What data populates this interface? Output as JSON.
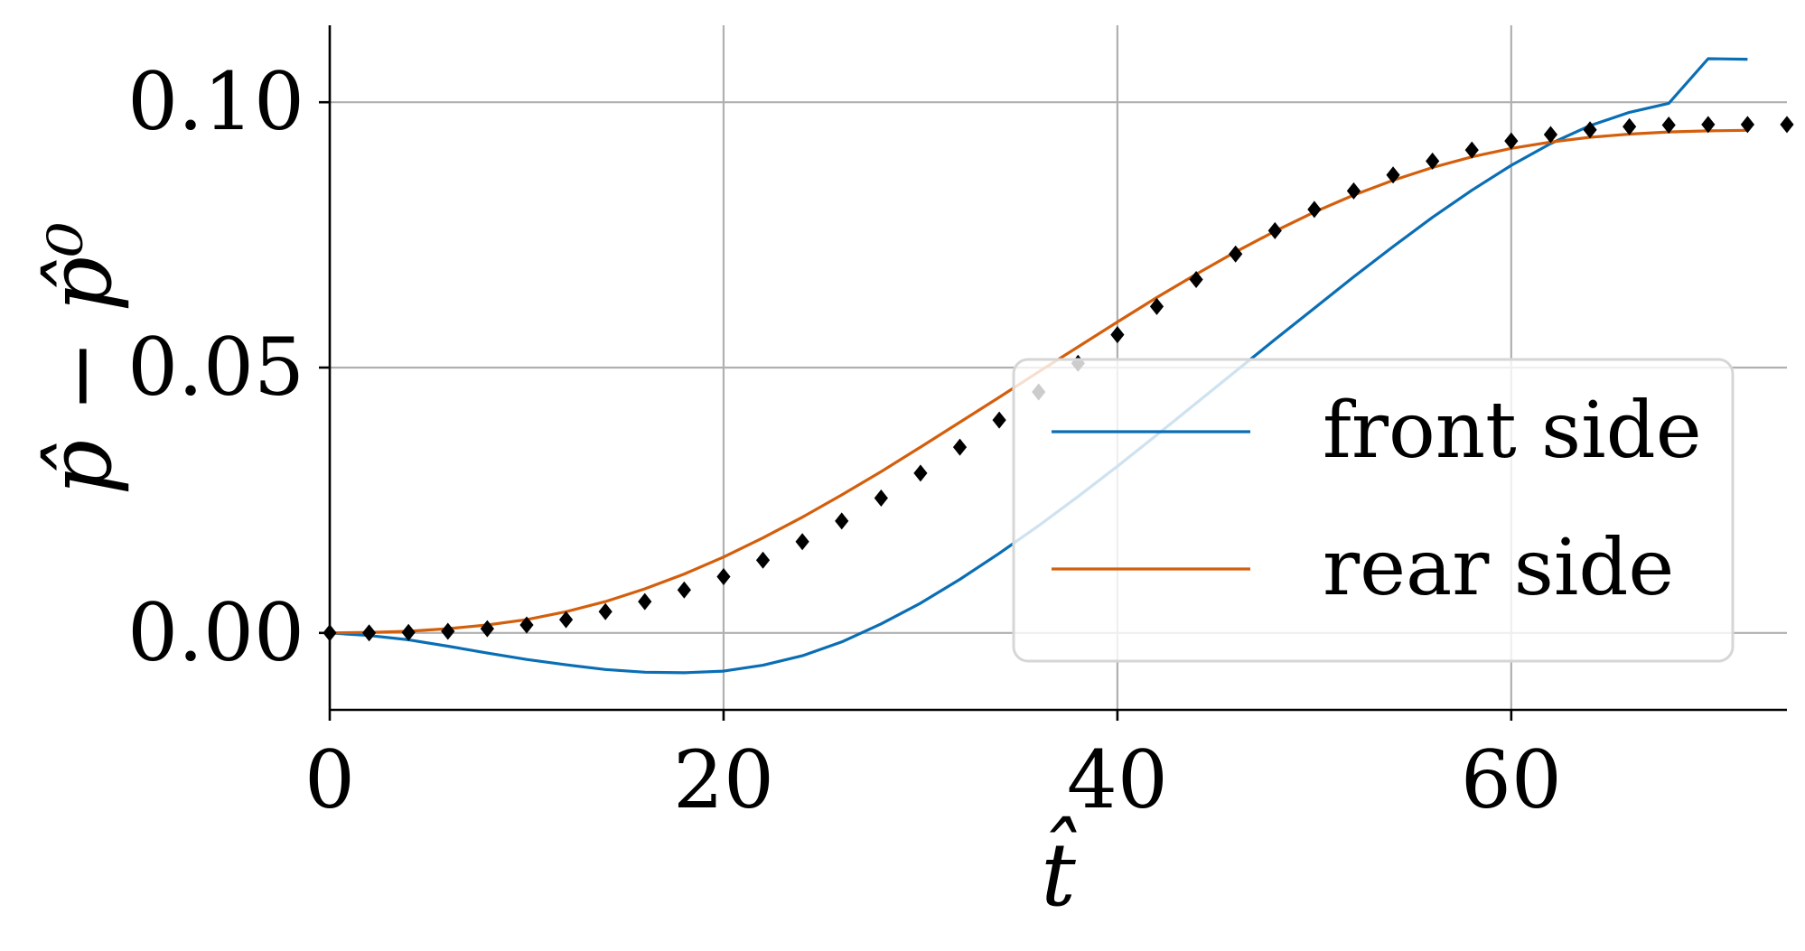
{
  "chart_data": {
    "type": "line",
    "xlabel": "t̂",
    "ylabel": "p̂ − p̂⁰",
    "xlim": [
      0,
      74
    ],
    "ylim": [
      -0.0145,
      0.1145
    ],
    "x_ticks": [
      0,
      20,
      40,
      60
    ],
    "x_tick_labels": [
      "0",
      "20",
      "40",
      "60"
    ],
    "y_ticks": [
      0.0,
      0.05,
      0.1
    ],
    "y_tick_labels": [
      "0.00",
      "0.05",
      "0.10"
    ],
    "grid": true,
    "legend_position": "lower-right",
    "series": [
      {
        "name": "front side",
        "style": "line",
        "color": "#0a6eb4",
        "x": [
          0,
          2,
          4,
          6,
          8,
          10,
          12,
          14,
          16,
          18,
          20,
          22,
          24,
          26,
          28,
          30,
          32,
          34,
          36,
          38,
          40,
          42,
          44,
          46,
          48,
          50,
          52,
          54,
          56,
          58,
          60,
          62,
          64,
          66,
          68,
          70,
          72
        ],
        "y": [
          0.0,
          -0.0005,
          -0.0013,
          -0.0025,
          -0.0038,
          -0.005,
          -0.006,
          -0.0069,
          -0.0074,
          -0.0075,
          -0.0072,
          -0.0061,
          -0.0043,
          -0.0017,
          0.0017,
          0.0056,
          0.0101,
          0.015,
          0.0202,
          0.0257,
          0.0314,
          0.0373,
          0.0433,
          0.0493,
          0.0553,
          0.0612,
          0.0671,
          0.0728,
          0.0783,
          0.0834,
          0.0881,
          0.0922,
          0.0956,
          0.0981,
          0.0998,
          0.1082,
          0.1081
        ]
      },
      {
        "name": "rear side",
        "style": "line",
        "color": "#d35f0c",
        "x": [
          0,
          2,
          4,
          6,
          8,
          10,
          12,
          14,
          16,
          18,
          20,
          22,
          24,
          26,
          28,
          30,
          32,
          34,
          36,
          38,
          40,
          42,
          44,
          46,
          48,
          50,
          52,
          54,
          56,
          58,
          60,
          62,
          64,
          66,
          68,
          70,
          72
        ],
        "y": [
          0.0,
          0.0001,
          0.0003,
          0.0008,
          0.0015,
          0.0025,
          0.004,
          0.0059,
          0.0083,
          0.0111,
          0.0143,
          0.0179,
          0.0218,
          0.026,
          0.0304,
          0.035,
          0.0397,
          0.0444,
          0.0492,
          0.0539,
          0.0586,
          0.0632,
          0.0676,
          0.0718,
          0.0757,
          0.0793,
          0.0825,
          0.0853,
          0.0877,
          0.0897,
          0.0913,
          0.0925,
          0.0934,
          0.094,
          0.0944,
          0.0946,
          0.0947
        ]
      },
      {
        "name": "",
        "style": "markers",
        "marker": "diamond",
        "color": "#000000",
        "x": [
          0,
          2,
          4,
          6,
          8,
          10,
          12,
          14,
          16,
          18,
          20,
          22,
          24,
          26,
          28,
          30,
          32,
          34,
          36,
          38,
          40,
          42,
          44,
          46,
          48,
          50,
          52,
          54,
          56,
          58,
          60,
          62,
          64,
          66,
          68,
          70,
          72,
          74
        ],
        "y": [
          0.0,
          0.0,
          0.0001,
          0.0003,
          0.0008,
          0.0015,
          0.0025,
          0.004,
          0.0059,
          0.0081,
          0.0106,
          0.0137,
          0.0172,
          0.0211,
          0.0254,
          0.0301,
          0.035,
          0.0401,
          0.0454,
          0.0508,
          0.0562,
          0.0615,
          0.0666,
          0.0714,
          0.0758,
          0.0798,
          0.0833,
          0.0863,
          0.0889,
          0.091,
          0.0927,
          0.0939,
          0.0948,
          0.0954,
          0.0957,
          0.0958,
          0.0958,
          0.0958
        ]
      }
    ]
  }
}
